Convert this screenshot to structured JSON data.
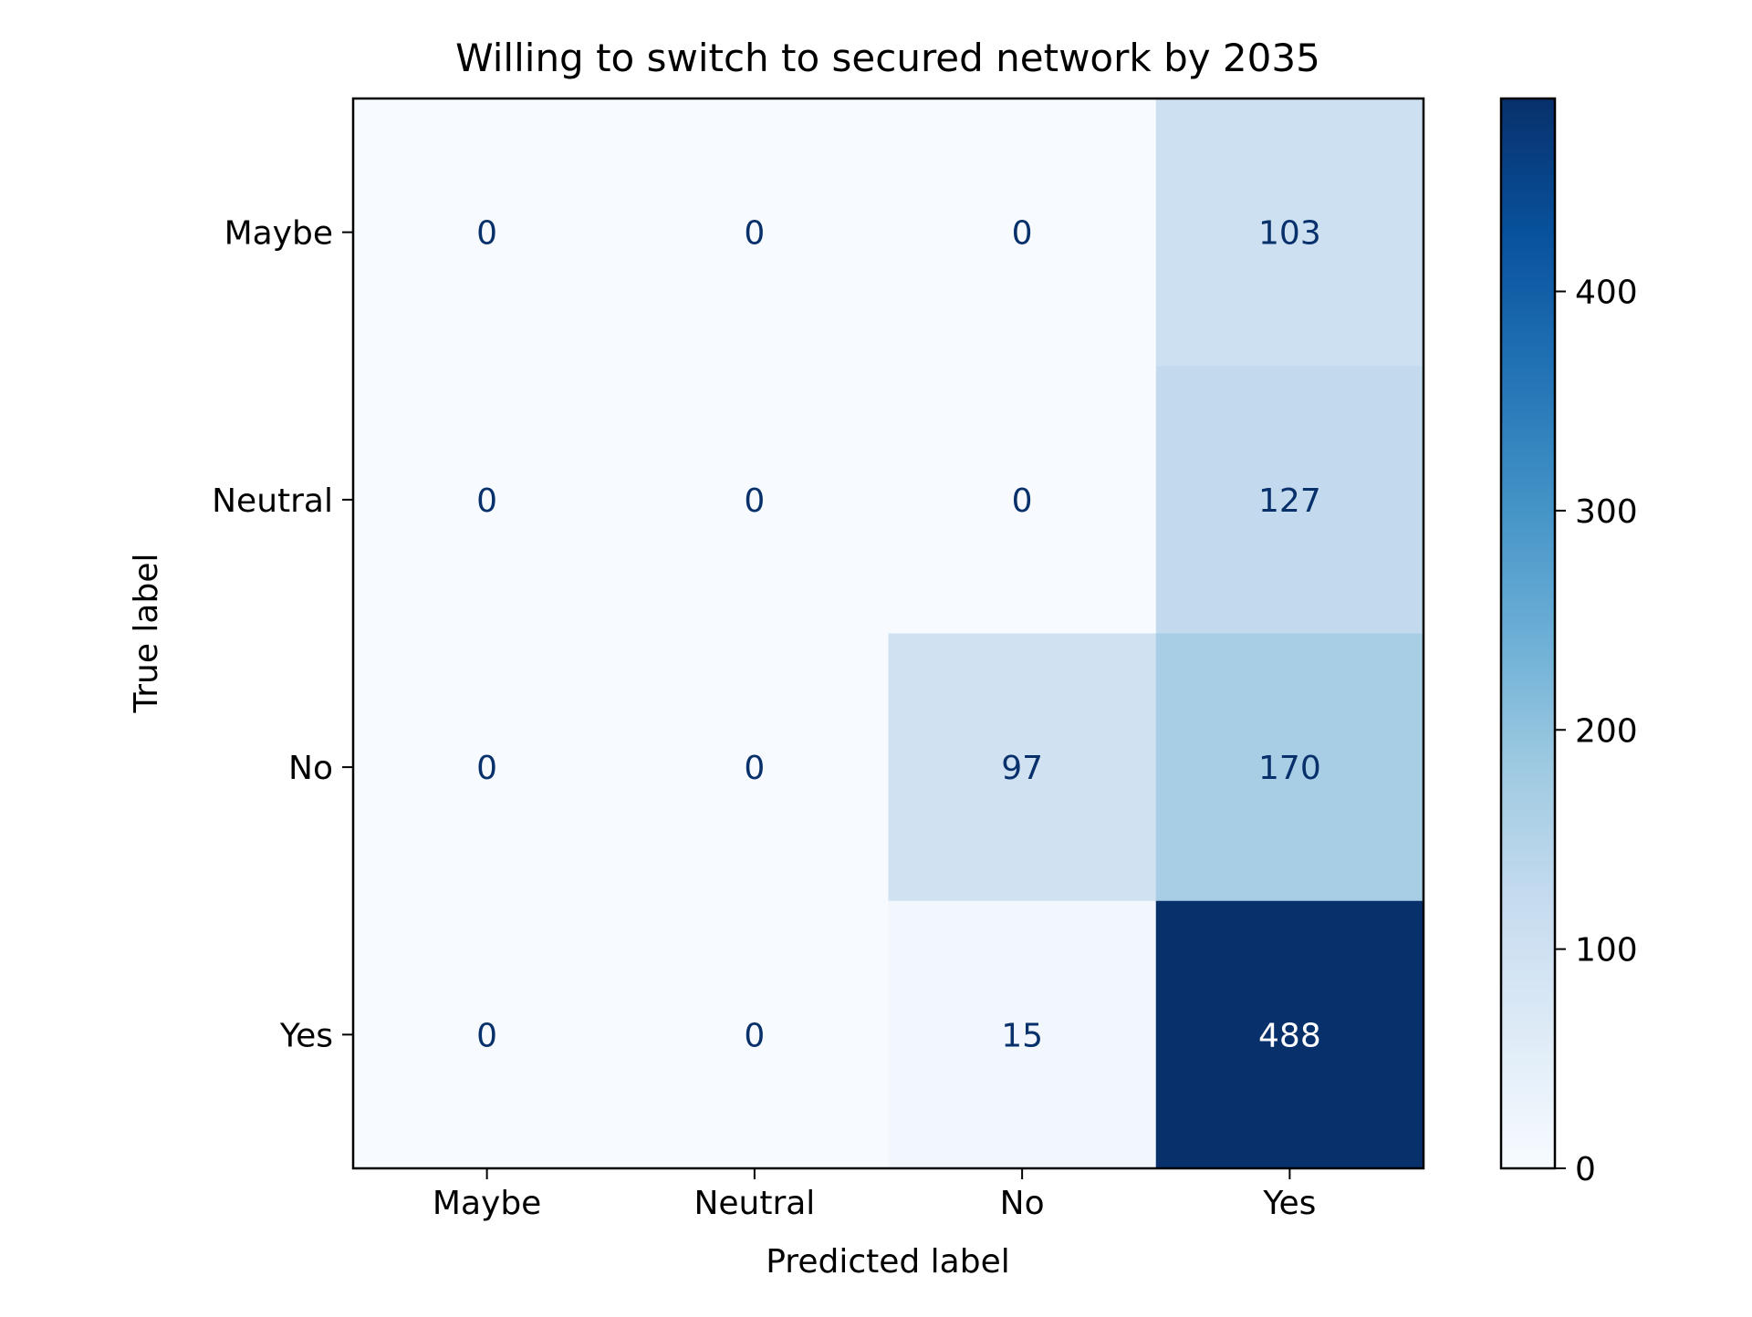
{
  "chart_data": {
    "type": "heatmap",
    "title": "Willing to switch to secured network by 2035",
    "xlabel": "Predicted label",
    "ylabel": "True label",
    "x_categories": [
      "Maybe",
      "Neutral",
      "No",
      "Yes"
    ],
    "y_categories": [
      "Maybe",
      "Neutral",
      "No",
      "Yes"
    ],
    "values": [
      [
        0,
        0,
        0,
        103
      ],
      [
        0,
        0,
        0,
        127
      ],
      [
        0,
        0,
        97,
        170
      ],
      [
        0,
        0,
        15,
        488
      ]
    ],
    "colormap": "Blues",
    "colorbar": {
      "min": 0,
      "max": 488,
      "ticks": [
        0,
        100,
        200,
        300,
        400
      ]
    },
    "colors": {
      "low": "#f7fbff",
      "high": "#08306b",
      "text_dark_cell": "#ffffff",
      "text_light_cell": "#08306b"
    },
    "grid": false
  }
}
